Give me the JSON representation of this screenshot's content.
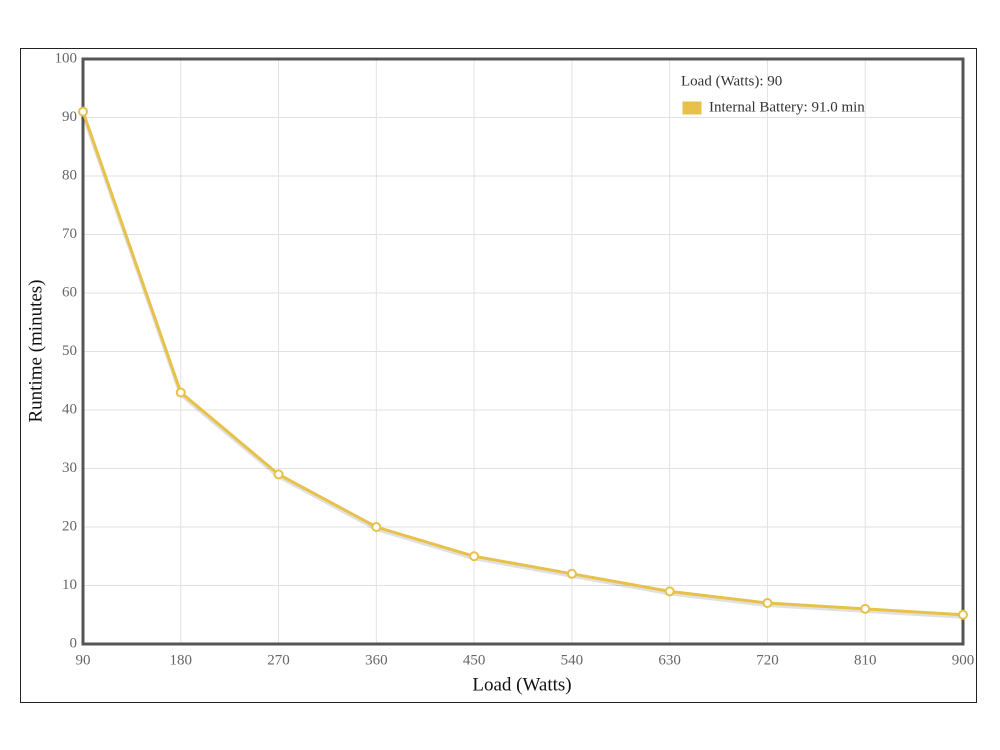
{
  "chart_data": {
    "type": "line",
    "x_label": "Load (Watts)",
    "y_label": "Runtime (minutes)",
    "x": [
      90,
      180,
      270,
      360,
      450,
      540,
      630,
      720,
      810,
      900
    ],
    "series": [
      {
        "color": "#e8c14a",
        "values": [
          91,
          43,
          29,
          20,
          15,
          12,
          9,
          7,
          6,
          5
        ]
      }
    ],
    "xlim": [
      90,
      900
    ],
    "xticks": [
      90,
      180,
      270,
      360,
      450,
      540,
      630,
      720,
      810,
      900
    ],
    "ylim": [
      0,
      100
    ],
    "yticks": [
      0,
      10,
      20,
      30,
      40,
      50,
      60,
      70,
      80,
      90,
      100
    ],
    "grid": true,
    "tooltip": {
      "title": "Load (Watts): 90",
      "label": "Internal Battery: 91.0 min"
    }
  }
}
